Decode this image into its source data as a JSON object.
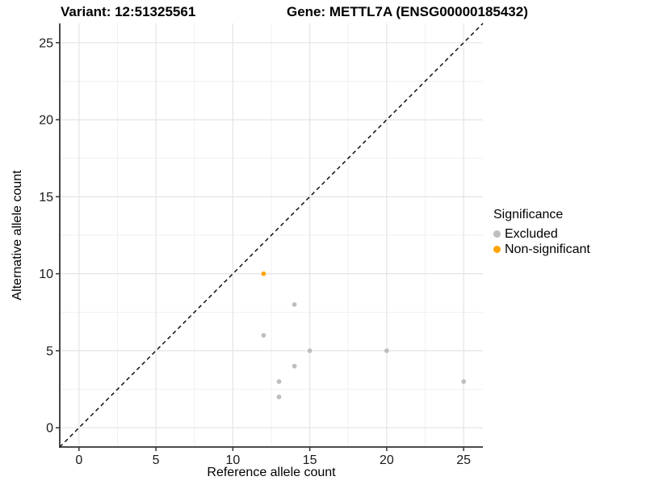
{
  "header": {
    "variant_title": "Variant: 12:51325561",
    "gene_title": "Gene: METTL7A (ENSG00000185432)"
  },
  "legend": {
    "title": "Significance",
    "items": [
      {
        "label": "Excluded",
        "color": "#bebebe"
      },
      {
        "label": "Non-significant",
        "color": "#ffa500"
      }
    ]
  },
  "chart_data": {
    "type": "scatter",
    "title": "Variant: 12:51325561   Gene: METTL7A (ENSG00000185432)",
    "xlabel": "Reference allele count",
    "ylabel": "Alternative allele count",
    "xlim": [
      -1.25,
      26.25
    ],
    "ylim": [
      -1.25,
      26.25
    ],
    "x_ticks": [
      0,
      5,
      10,
      15,
      20,
      25
    ],
    "y_ticks": [
      0,
      5,
      10,
      15,
      20,
      25
    ],
    "x_minor_ticks": [
      2.5,
      7.5,
      12.5,
      17.5,
      22.5
    ],
    "y_minor_ticks": [
      2.5,
      7.5,
      12.5,
      17.5,
      22.5
    ],
    "grid": "major+minor",
    "legend_position": "right",
    "reference_line": {
      "type": "identity y=x",
      "style": "dashed",
      "color": "#000000"
    },
    "series": [
      {
        "name": "Excluded",
        "color": "#bebebe",
        "points": [
          [
            12,
            6
          ],
          [
            13,
            2
          ],
          [
            13,
            3
          ],
          [
            14,
            4
          ],
          [
            14,
            8
          ],
          [
            15,
            5
          ],
          [
            20,
            5
          ],
          [
            25,
            3
          ]
        ]
      },
      {
        "name": "Non-significant",
        "color": "#ffa500",
        "points": [
          [
            12,
            10
          ]
        ]
      }
    ],
    "style": {
      "grid_major_color": "#e4e4e4",
      "grid_minor_color": "#efefef",
      "axis_line_color": "#333333",
      "point_radius": 2.9
    }
  }
}
